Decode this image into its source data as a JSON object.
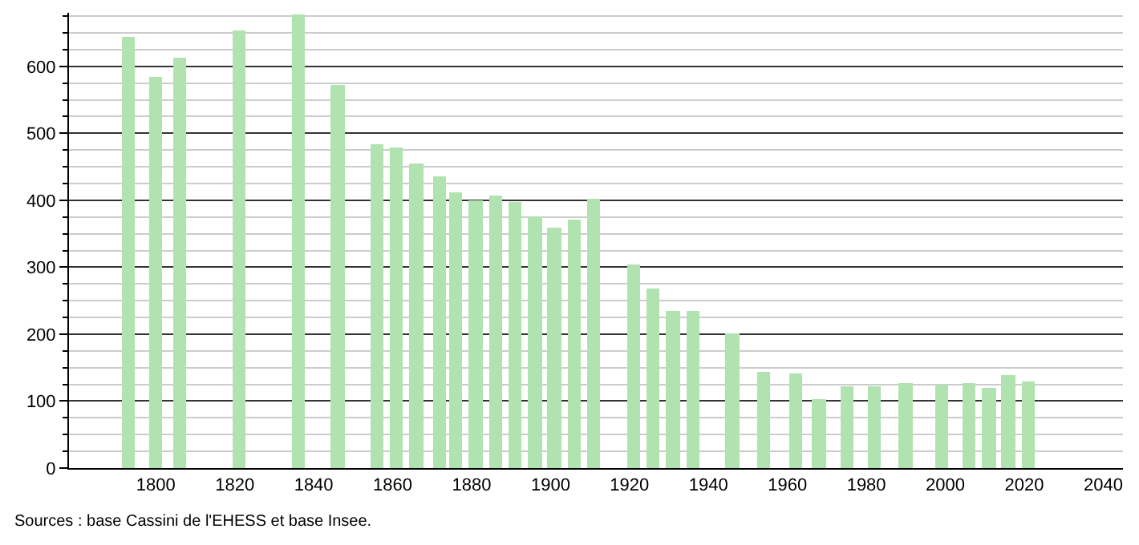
{
  "chart_data": {
    "type": "bar",
    "x": [
      1793,
      1800,
      1806,
      1821,
      1836,
      1846,
      1856,
      1861,
      1866,
      1872,
      1876,
      1881,
      1886,
      1891,
      1896,
      1901,
      1906,
      1911,
      1921,
      1926,
      1931,
      1936,
      1946,
      1954,
      1962,
      1968,
      1975,
      1982,
      1990,
      1999,
      2006,
      2011,
      2016,
      2021
    ],
    "values": [
      643,
      584,
      614,
      654,
      678,
      573,
      483,
      478,
      456,
      436,
      413,
      401,
      407,
      397,
      375,
      360,
      371,
      403,
      304,
      269,
      234,
      234,
      202,
      144,
      141,
      104,
      123,
      121,
      126,
      124,
      126,
      120,
      139,
      129
    ],
    "color": "#b0e3b0",
    "xlim": [
      1778,
      2045
    ],
    "xticks": [
      1800,
      1820,
      1840,
      1860,
      1880,
      1900,
      1920,
      1940,
      1960,
      1980,
      2000,
      2020,
      2040
    ],
    "ylim": [
      0,
      680
    ],
    "yticks": [
      0,
      100,
      200,
      300,
      400,
      500,
      600
    ],
    "grid": "y",
    "annotations": [
      "Sources : base Cassini de l'EHESS et base Insee."
    ]
  }
}
